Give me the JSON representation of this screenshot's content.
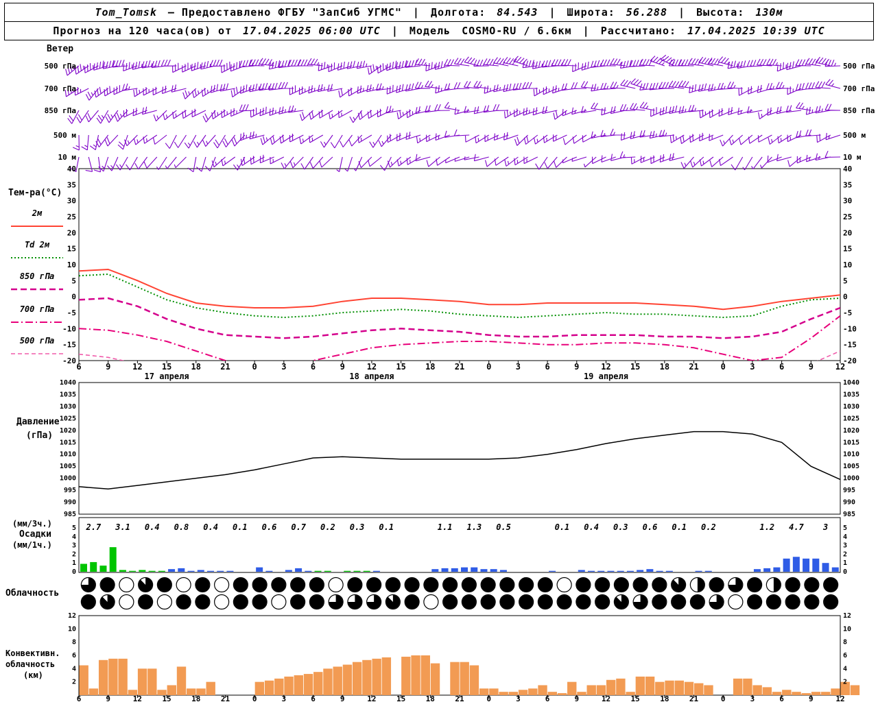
{
  "header": {
    "station": "Tom_Tomsk",
    "provider": "— Предоставлено ФГБУ \"ЗапСиб УГМС\"",
    "sep": "|",
    "lon_label": "Долгота:",
    "lon": "84.543",
    "lat_label": "Широта:",
    "lat": "56.288",
    "alt_label": "Высота:",
    "alt": "130м",
    "forecast_label": "Прогноз на 120 часа(ов) от",
    "run_time": "17.04.2025 06:00 UTC",
    "model_label": "Модель",
    "model": "COSMO-RU / 6.6км",
    "calc_label": "Рассчитано:",
    "calc_time": "17.04.2025 10:39 UTC"
  },
  "labels": {
    "wind": "Ветер",
    "temp": "Тем-ра(°C)",
    "pressure1": "Давление",
    "pressure2": "(гПа)",
    "precip_unit3h": "(мм/3ч.)",
    "precip": "Осадки",
    "precip_unit1h": "(мм/1ч.)",
    "cloud": "Облачность",
    "conv1": "Конвективн.",
    "conv2": "облачность",
    "conv3": "(км)"
  },
  "axes": {
    "wind_levels": [
      "500 гПа",
      "700 гПа",
      "850 гПа",
      "500 м",
      "10 м"
    ],
    "hour_labels": [
      "6",
      "9",
      "12",
      "15",
      "18",
      "21",
      "0",
      "3",
      "6",
      "9",
      "12",
      "15",
      "18",
      "21",
      "0",
      "3",
      "6",
      "9",
      "12",
      "15",
      "18",
      "21",
      "0",
      "3",
      "6",
      "9",
      "12"
    ],
    "dates": [
      "17 апреля",
      "18 апреля",
      "19 апреля"
    ],
    "temp_ticks": [
      40,
      35,
      30,
      25,
      20,
      15,
      10,
      5,
      0,
      -5,
      -10,
      -15,
      -20
    ],
    "pressure_ticks": [
      1040,
      1035,
      1030,
      1025,
      1020,
      1015,
      1010,
      1005,
      1000,
      995,
      990,
      985
    ],
    "precip_ticks": [
      5,
      4,
      3,
      2,
      1,
      0
    ],
    "conv_ticks": [
      12,
      10,
      8,
      6,
      4,
      2
    ]
  },
  "chart_data": [
    {
      "type": "wind-barbs",
      "title": "Ветер",
      "color": "#7d00c8",
      "levels": [
        {
          "name": "500 гПа",
          "dirs": [
            245,
            250,
            260,
            255,
            250,
            255,
            265,
            270,
            265,
            255,
            250,
            255,
            260,
            270,
            280,
            275,
            265,
            260,
            265,
            275,
            285,
            280,
            270,
            265,
            260,
            270,
            280
          ],
          "speeds": [
            35,
            40,
            35,
            30,
            35,
            40,
            45,
            40,
            35,
            30,
            35,
            40,
            35,
            30,
            35,
            40,
            35,
            30,
            35,
            40,
            45,
            40,
            35,
            30,
            35,
            40,
            35
          ]
        },
        {
          "name": "700 гПа",
          "dirs": [
            230,
            240,
            250,
            245,
            240,
            250,
            260,
            255,
            250,
            245,
            250,
            260,
            265,
            270,
            265,
            260,
            255,
            260,
            270,
            275,
            270,
            265,
            260,
            255,
            260,
            270,
            275
          ],
          "speeds": [
            25,
            30,
            25,
            20,
            25,
            30,
            35,
            30,
            25,
            20,
            25,
            30,
            25,
            20,
            25,
            30,
            25,
            20,
            25,
            30,
            35,
            30,
            25,
            20,
            25,
            30,
            25
          ]
        },
        {
          "name": "850 гПа",
          "dirs": [
            210,
            225,
            240,
            235,
            230,
            240,
            255,
            250,
            240,
            230,
            240,
            250,
            260,
            265,
            255,
            250,
            245,
            255,
            265,
            270,
            260,
            255,
            250,
            245,
            255,
            265,
            270
          ],
          "speeds": [
            20,
            25,
            20,
            15,
            20,
            25,
            30,
            25,
            20,
            15,
            20,
            25,
            20,
            15,
            20,
            25,
            20,
            15,
            20,
            25,
            30,
            25,
            20,
            15,
            20,
            25,
            20
          ]
        },
        {
          "name": "500 м",
          "dirs": [
            190,
            210,
            230,
            220,
            210,
            225,
            245,
            240,
            225,
            215,
            225,
            240,
            250,
            255,
            245,
            240,
            235,
            245,
            255,
            260,
            250,
            240,
            235,
            230,
            245,
            255,
            260
          ],
          "speeds": [
            15,
            20,
            15,
            10,
            15,
            20,
            25,
            20,
            15,
            10,
            15,
            20,
            15,
            10,
            15,
            20,
            15,
            10,
            15,
            20,
            25,
            20,
            15,
            10,
            15,
            20,
            15
          ]
        },
        {
          "name": "10 м",
          "dirs": [
            180,
            200,
            225,
            210,
            200,
            220,
            240,
            230,
            215,
            205,
            220,
            235,
            245,
            250,
            240,
            230,
            225,
            240,
            250,
            255,
            245,
            235,
            225,
            220,
            240,
            250,
            255
          ],
          "speeds": [
            10,
            15,
            10,
            5,
            10,
            15,
            20,
            15,
            10,
            5,
            10,
            15,
            10,
            5,
            10,
            15,
            10,
            5,
            10,
            15,
            20,
            15,
            10,
            5,
            10,
            15,
            10
          ]
        }
      ]
    },
    {
      "type": "line",
      "title": "Температура",
      "ylim": [
        -20,
        40
      ],
      "x_step_hours": 3,
      "series": [
        {
          "name": "2м",
          "color": "#ff4332",
          "width": 2,
          "dash": "",
          "values": [
            8,
            8.5,
            5,
            1,
            -2,
            -3,
            -3.5,
            -3.5,
            -3,
            -1.5,
            -0.5,
            -0.5,
            -1,
            -1.5,
            -2.5,
            -2.5,
            -2,
            -2,
            -2,
            -2,
            -2.5,
            -3,
            -4,
            -3,
            -1.5,
            -0.5,
            0.5
          ]
        },
        {
          "name": "Td 2м",
          "color": "#008f00",
          "width": 2,
          "dash": "2 3",
          "values": [
            6.5,
            7,
            3,
            -1,
            -3.5,
            -5,
            -6,
            -6.5,
            -6,
            -5,
            -4.5,
            -4,
            -4.5,
            -5.5,
            -6,
            -6.5,
            -6,
            -5.5,
            -5,
            -5.5,
            -5.5,
            -6,
            -6.5,
            -6,
            -3,
            -1,
            -0.5
          ]
        },
        {
          "name": "850 гПа",
          "color": "#d4008c",
          "width": 2.5,
          "dash": "9 5",
          "values": [
            -1,
            -0.5,
            -3,
            -7,
            -10,
            -12,
            -12.5,
            -13,
            -12.5,
            -11.5,
            -10.5,
            -10,
            -10.5,
            -11,
            -12,
            -12.5,
            -12.5,
            -12,
            -12,
            -12,
            -12.5,
            -12.5,
            -13,
            -12.5,
            -11,
            -7,
            -3.5
          ]
        },
        {
          "name": "700 гПа",
          "color": "#e8007a",
          "width": 2,
          "dash": "11 4 2 4",
          "values": [
            -10,
            -10.5,
            -12,
            -14,
            -17,
            -20,
            -22,
            -22,
            -20,
            -18,
            -16,
            -15,
            -14.5,
            -14,
            -14,
            -14.5,
            -15,
            -15,
            -14.5,
            -14.5,
            -15,
            -16,
            -18,
            -20,
            -19,
            -13,
            -6
          ]
        },
        {
          "name": "500 гПа",
          "color": "#f05aaa",
          "width": 1.6,
          "dash": "6 4",
          "values": [
            -18,
            -19,
            -21,
            -24,
            -27,
            -29,
            -30,
            -30,
            -29,
            -28,
            -26,
            -25,
            -24,
            -24,
            -24,
            -24,
            -25,
            -25,
            -24,
            -24,
            -25,
            -26,
            -27,
            -28,
            -26,
            -21,
            -17
          ]
        }
      ]
    },
    {
      "type": "line",
      "title": "Давление (гПа)",
      "ylim": [
        985,
        1040
      ],
      "color": "#000000",
      "x_step_hours": 3,
      "values": [
        996.5,
        995.5,
        997,
        998.5,
        1000,
        1001.5,
        1003.5,
        1006,
        1008.5,
        1009,
        1008.5,
        1008,
        1008,
        1008,
        1008,
        1008.5,
        1010,
        1012,
        1014.5,
        1016.5,
        1018,
        1019.5,
        1019.5,
        1018.5,
        1015,
        1005,
        999.5
      ]
    },
    {
      "type": "bar",
      "title": "Осадки",
      "ylim": [
        0,
        5
      ],
      "colors": {
        "g": "#00c400",
        "b": "#2f5ce6"
      },
      "three_hour": [
        2.7,
        3.1,
        0.4,
        0.8,
        0.4,
        0.1,
        0.6,
        0.7,
        0.2,
        0.3,
        0.1,
        null,
        1.1,
        1.3,
        0.5,
        null,
        0.1,
        0.4,
        0.3,
        0.6,
        0.1,
        0.2,
        null,
        1.2,
        4.7,
        3
      ],
      "hourly": [
        [
          0,
          0.9,
          "g"
        ],
        [
          1,
          1.1,
          "g"
        ],
        [
          2,
          0.7,
          "g"
        ],
        [
          3,
          2.8,
          "g"
        ],
        [
          4,
          0.2,
          "g"
        ],
        [
          5,
          0.1,
          "g"
        ],
        [
          6,
          0.2,
          "g"
        ],
        [
          7,
          0.1,
          "g"
        ],
        [
          8,
          0.1,
          "g"
        ],
        [
          9,
          0.3,
          "b"
        ],
        [
          10,
          0.4,
          "b"
        ],
        [
          11,
          0.1,
          "b"
        ],
        [
          12,
          0.2,
          "b"
        ],
        [
          13,
          0.1,
          "b"
        ],
        [
          14,
          0.1,
          "b"
        ],
        [
          15,
          0.1,
          "b"
        ],
        [
          18,
          0.5,
          "b"
        ],
        [
          19,
          0.1,
          "b"
        ],
        [
          21,
          0.2,
          "b"
        ],
        [
          22,
          0.4,
          "b"
        ],
        [
          23,
          0.1,
          "b"
        ],
        [
          24,
          0.1,
          "g"
        ],
        [
          25,
          0.1,
          "g"
        ],
        [
          27,
          0.1,
          "g"
        ],
        [
          28,
          0.1,
          "g"
        ],
        [
          29,
          0.1,
          "g"
        ],
        [
          30,
          0.1,
          "b"
        ],
        [
          36,
          0.3,
          "b"
        ],
        [
          37,
          0.4,
          "b"
        ],
        [
          38,
          0.4,
          "b"
        ],
        [
          39,
          0.5,
          "b"
        ],
        [
          40,
          0.5,
          "b"
        ],
        [
          41,
          0.3,
          "b"
        ],
        [
          42,
          0.3,
          "b"
        ],
        [
          43,
          0.2,
          "b"
        ],
        [
          48,
          0.1,
          "b"
        ],
        [
          51,
          0.2,
          "b"
        ],
        [
          52,
          0.1,
          "b"
        ],
        [
          53,
          0.1,
          "b"
        ],
        [
          54,
          0.1,
          "b"
        ],
        [
          55,
          0.1,
          "b"
        ],
        [
          56,
          0.1,
          "b"
        ],
        [
          57,
          0.2,
          "b"
        ],
        [
          58,
          0.3,
          "b"
        ],
        [
          59,
          0.1,
          "b"
        ],
        [
          60,
          0.1,
          "b"
        ],
        [
          63,
          0.1,
          "b"
        ],
        [
          64,
          0.1,
          "b"
        ],
        [
          69,
          0.3,
          "b"
        ],
        [
          70,
          0.4,
          "b"
        ],
        [
          71,
          0.5,
          "b"
        ],
        [
          72,
          1.5,
          "b"
        ],
        [
          73,
          1.7,
          "b"
        ],
        [
          74,
          1.5,
          "b"
        ],
        [
          75,
          1.5,
          "b"
        ],
        [
          76,
          1.0,
          "b"
        ],
        [
          77,
          0.5,
          "b"
        ]
      ]
    },
    {
      "type": "symbols",
      "title": "Облачность",
      "symbol": "cloud-cover-okta",
      "rows": [
        [
          6,
          8,
          0,
          7,
          8,
          0,
          8,
          0,
          8,
          8,
          8,
          8,
          8,
          0,
          8,
          8,
          8,
          8,
          8,
          8,
          8,
          8,
          8,
          8,
          8,
          0,
          8,
          8,
          8,
          8,
          8,
          7,
          4,
          8,
          6,
          8,
          4,
          8,
          8,
          8
        ],
        [
          8,
          7,
          0,
          8,
          0,
          8,
          8,
          0,
          8,
          8,
          0,
          8,
          8,
          6,
          6,
          6,
          7,
          8,
          0,
          8,
          8,
          8,
          8,
          8,
          8,
          8,
          8,
          8,
          7,
          6,
          8,
          8,
          8,
          6,
          0,
          8,
          8,
          8,
          8,
          8
        ]
      ]
    },
    {
      "type": "bar",
      "title": "Конвективная облачность (км)",
      "ylim": [
        0,
        12
      ],
      "color": "#f29b53",
      "hourly": [
        4.5,
        1.0,
        5.3,
        5.5,
        5.5,
        0.8,
        4.0,
        4.0,
        0.8,
        1.5,
        4.3,
        1.0,
        1.0,
        2.0,
        0,
        0,
        0,
        0,
        2.0,
        2.2,
        2.5,
        2.8,
        3.0,
        3.2,
        3.5,
        4.0,
        4.3,
        4.6,
        5.0,
        5.3,
        5.5,
        5.7,
        0,
        5.8,
        6.0,
        6.0,
        4.8,
        0,
        5.0,
        5.0,
        4.5,
        1.0,
        1.0,
        0.5,
        0.5,
        0.8,
        1.0,
        1.5,
        0.5,
        0.3,
        2.0,
        0.5,
        1.5,
        1.5,
        2.3,
        2.5,
        0.5,
        2.8,
        2.8,
        2.0,
        2.2,
        2.2,
        2.0,
        1.8,
        1.5,
        0,
        0,
        2.5,
        2.5,
        1.5,
        1.2,
        0.5,
        0.8,
        0.5,
        0.3,
        0.5,
        0.5,
        1.0,
        2.0,
        1.5
      ]
    }
  ]
}
